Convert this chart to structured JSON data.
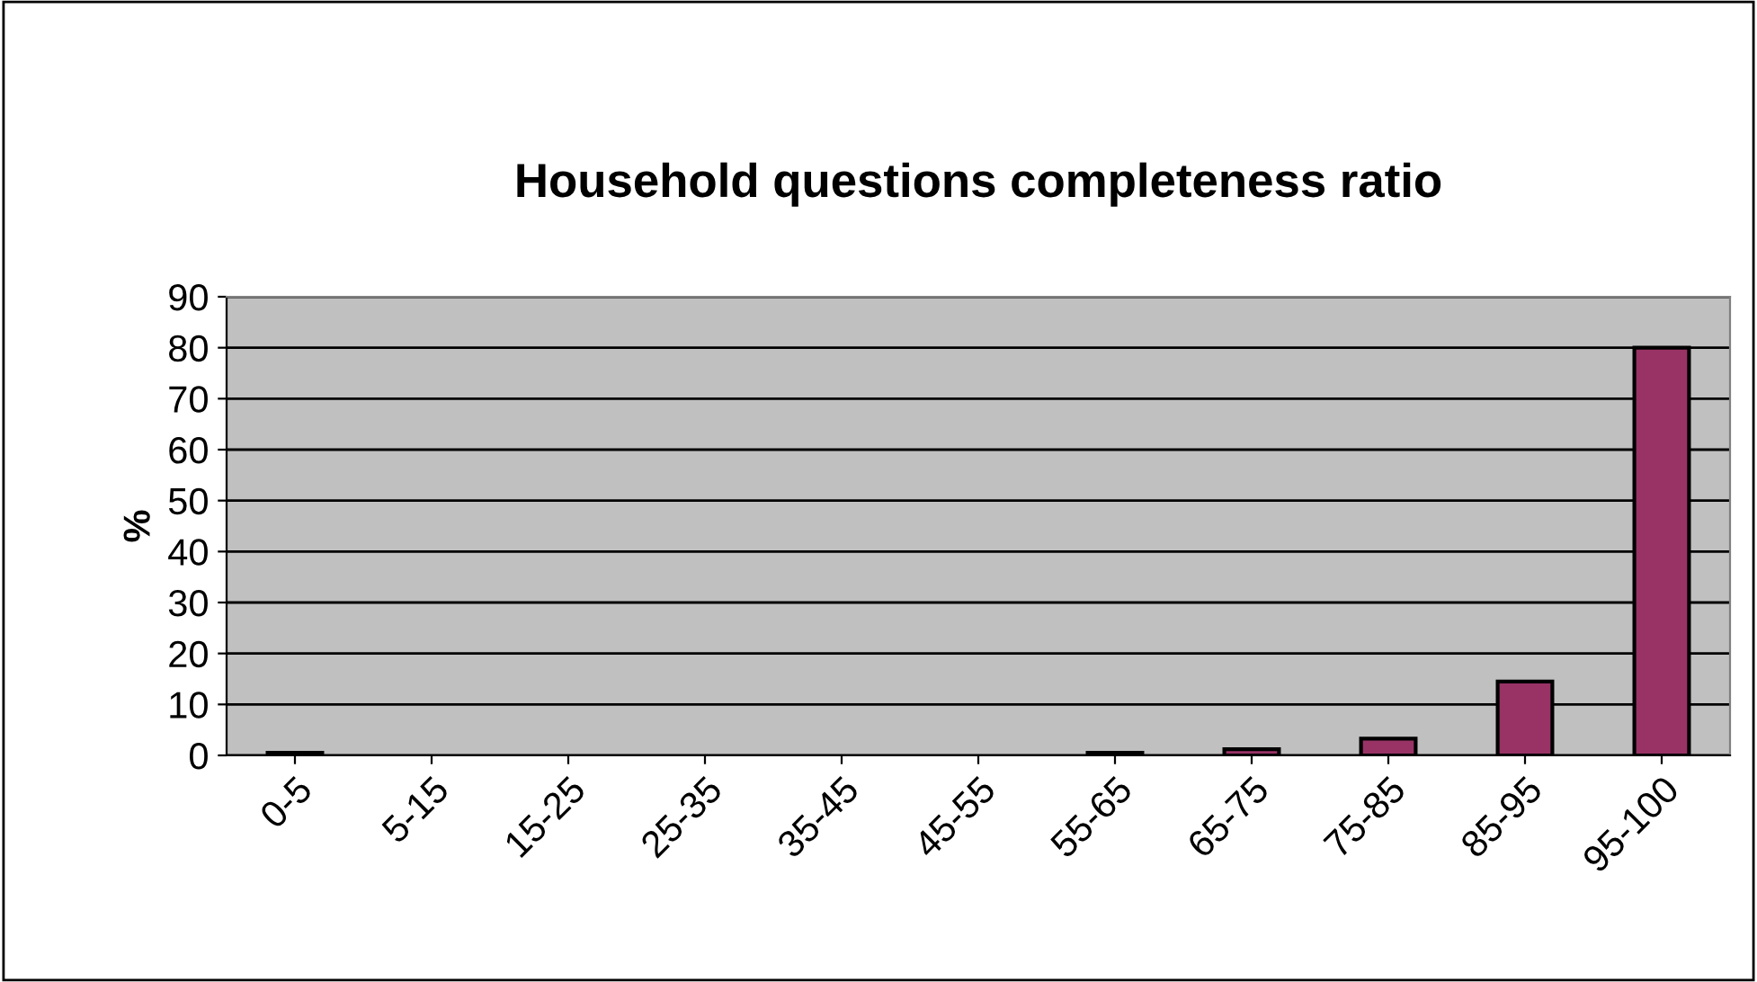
{
  "chart_data": {
    "type": "bar",
    "title": "Household questions completeness ratio",
    "ylabel": "%",
    "categories": [
      "0-5",
      "5-15",
      "15-25",
      "25-35",
      "35-45",
      "45-55",
      "55-65",
      "65-75",
      "75-85",
      "85-95",
      "95-100"
    ],
    "values": [
      0.5,
      0,
      0,
      0,
      0,
      0,
      0.5,
      1.2,
      3.3,
      14.5,
      80
    ],
    "color": "#993366",
    "ylim": [
      0,
      90
    ],
    "yticks": [
      0,
      10,
      20,
      30,
      40,
      50,
      60,
      70,
      80,
      90
    ],
    "grid": "y"
  }
}
